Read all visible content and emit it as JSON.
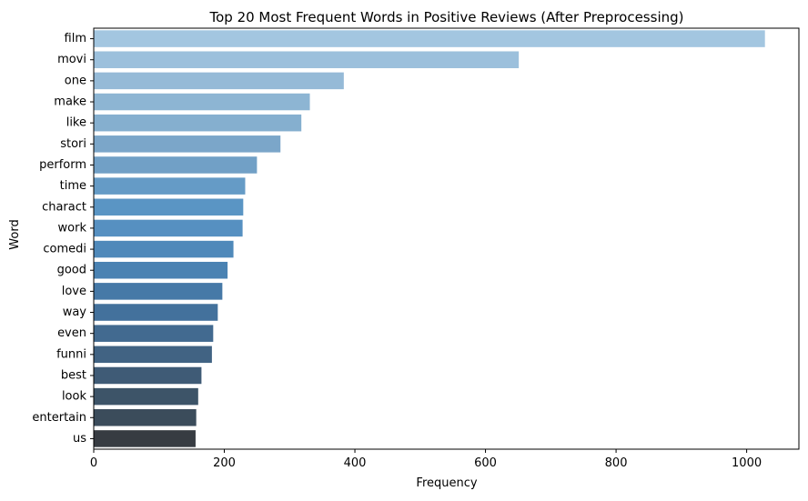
{
  "chart_data": {
    "type": "bar",
    "orientation": "horizontal",
    "title": "Top 20 Most Frequent Words in Positive Reviews (After Preprocessing)",
    "xlabel": "Frequency",
    "ylabel": "Word",
    "xlim": [
      0,
      1080
    ],
    "xticks": [
      0,
      200,
      400,
      600,
      800,
      1000
    ],
    "grid": false,
    "legend": "none",
    "palette": "Blues_d",
    "categories": [
      "film",
      "movi",
      "one",
      "make",
      "like",
      "stori",
      "perform",
      "time",
      "charact",
      "work",
      "comedi",
      "good",
      "love",
      "way",
      "even",
      "funni",
      "best",
      "look",
      "entertain",
      "us"
    ],
    "values": [
      1028,
      651,
      383,
      331,
      318,
      286,
      250,
      232,
      229,
      228,
      214,
      205,
      197,
      190,
      183,
      181,
      165,
      160,
      157,
      156
    ],
    "colors": [
      "#a3c6e0",
      "#9cc0dc",
      "#95bad7",
      "#8db5d3",
      "#85afcf",
      "#7ba6c9",
      "#71a0c6",
      "#659bc6",
      "#5a95c4",
      "#5690c1",
      "#4f89ba",
      "#4a82b2",
      "#4679a7",
      "#43719c",
      "#426a90",
      "#416383",
      "#3f5b76",
      "#3d5468",
      "#3b4c5b",
      "#373c42"
    ]
  }
}
